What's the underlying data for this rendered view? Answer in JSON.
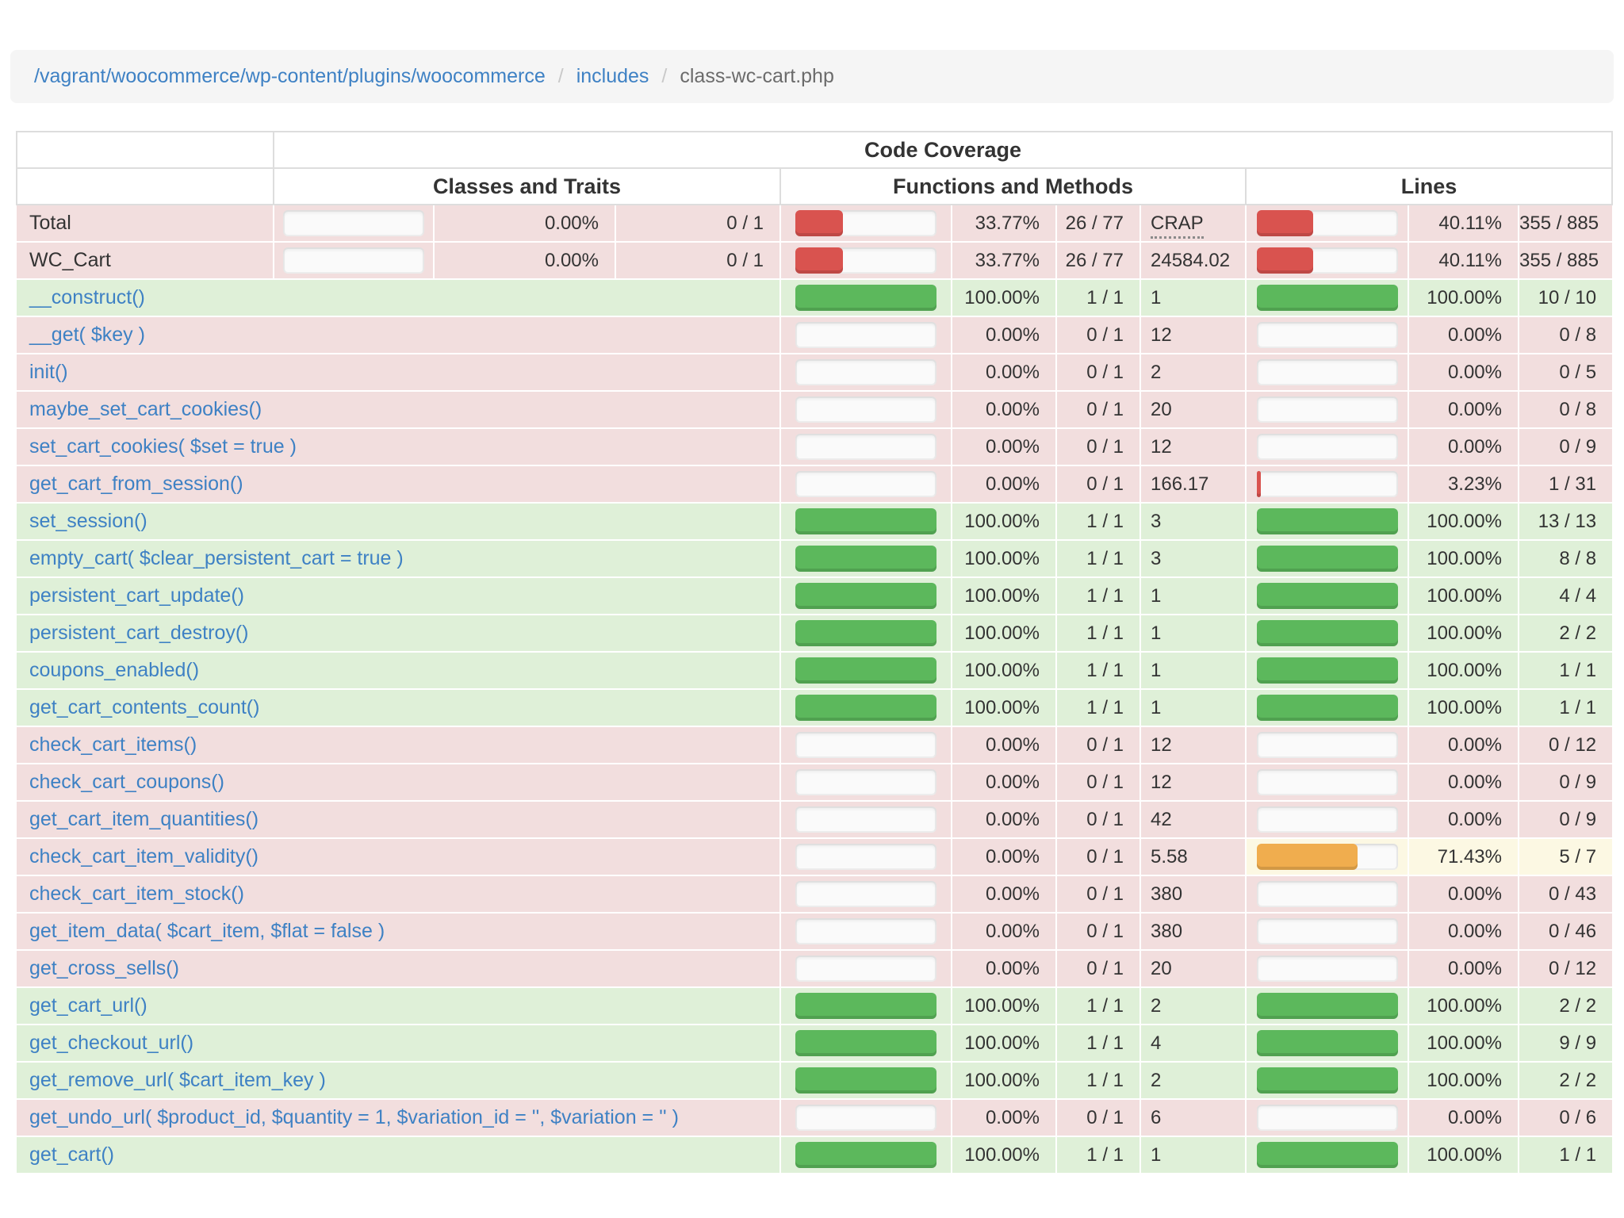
{
  "breadcrumb": {
    "links": [
      "/vagrant/woocommerce/wp-content/plugins/woocommerce",
      "includes"
    ],
    "separator": "/",
    "current": "class-wc-cart.php"
  },
  "table": {
    "header": {
      "main": "Code Coverage",
      "groups": [
        "Classes and Traits",
        "Functions and Methods",
        "Lines"
      ]
    },
    "rows": [
      {
        "name": "Total",
        "is_link": false,
        "kind": "summary",
        "status": "danger",
        "cls": {
          "bar": 0,
          "pct": "0.00%",
          "ratio": "0 / 1"
        },
        "fn": {
          "bar": 33.77,
          "pct": "33.77%",
          "ratio": "26 / 77",
          "crap": "CRAP",
          "crap_header": true
        },
        "ln": {
          "bar": 40.11,
          "pct": "40.11%",
          "ratio": "355 / 885"
        }
      },
      {
        "name": "WC_Cart",
        "is_link": false,
        "kind": "summary",
        "status": "danger",
        "cls": {
          "bar": 0,
          "pct": "0.00%",
          "ratio": "0 / 1"
        },
        "fn": {
          "bar": 33.77,
          "pct": "33.77%",
          "ratio": "26 / 77",
          "crap": "24584.02",
          "crap_header": false
        },
        "ln": {
          "bar": 40.11,
          "pct": "40.11%",
          "ratio": "355 / 885"
        }
      },
      {
        "name": "__construct()",
        "is_link": true,
        "kind": "method",
        "status": "success",
        "fn": {
          "bar": 100,
          "pct": "100.00%",
          "ratio": "1 / 1",
          "crap": "1"
        },
        "ln": {
          "bar": 100,
          "pct": "100.00%",
          "ratio": "10 / 10"
        }
      },
      {
        "name": "__get( $key )",
        "is_link": true,
        "kind": "method",
        "status": "danger",
        "fn": {
          "bar": 0,
          "pct": "0.00%",
          "ratio": "0 / 1",
          "crap": "12"
        },
        "ln": {
          "bar": 0,
          "pct": "0.00%",
          "ratio": "0 / 8"
        }
      },
      {
        "name": "init()",
        "is_link": true,
        "kind": "method",
        "status": "danger",
        "fn": {
          "bar": 0,
          "pct": "0.00%",
          "ratio": "0 / 1",
          "crap": "2"
        },
        "ln": {
          "bar": 0,
          "pct": "0.00%",
          "ratio": "0 / 5"
        }
      },
      {
        "name": "maybe_set_cart_cookies()",
        "is_link": true,
        "kind": "method",
        "status": "danger",
        "fn": {
          "bar": 0,
          "pct": "0.00%",
          "ratio": "0 / 1",
          "crap": "20"
        },
        "ln": {
          "bar": 0,
          "pct": "0.00%",
          "ratio": "0 / 8"
        }
      },
      {
        "name": "set_cart_cookies( $set = true )",
        "is_link": true,
        "kind": "method",
        "status": "danger",
        "fn": {
          "bar": 0,
          "pct": "0.00%",
          "ratio": "0 / 1",
          "crap": "12"
        },
        "ln": {
          "bar": 0,
          "pct": "0.00%",
          "ratio": "0 / 9"
        }
      },
      {
        "name": "get_cart_from_session()",
        "is_link": true,
        "kind": "method",
        "status": "danger",
        "fn": {
          "bar": 0,
          "pct": "0.00%",
          "ratio": "0 / 1",
          "crap": "166.17"
        },
        "ln": {
          "bar": 3.23,
          "pct": "3.23%",
          "ratio": "1 / 31"
        }
      },
      {
        "name": "set_session()",
        "is_link": true,
        "kind": "method",
        "status": "success",
        "fn": {
          "bar": 100,
          "pct": "100.00%",
          "ratio": "1 / 1",
          "crap": "3"
        },
        "ln": {
          "bar": 100,
          "pct": "100.00%",
          "ratio": "13 / 13"
        }
      },
      {
        "name": "empty_cart( $clear_persistent_cart = true )",
        "is_link": true,
        "kind": "method",
        "status": "success",
        "fn": {
          "bar": 100,
          "pct": "100.00%",
          "ratio": "1 / 1",
          "crap": "3"
        },
        "ln": {
          "bar": 100,
          "pct": "100.00%",
          "ratio": "8 / 8"
        }
      },
      {
        "name": "persistent_cart_update()",
        "is_link": true,
        "kind": "method",
        "status": "success",
        "fn": {
          "bar": 100,
          "pct": "100.00%",
          "ratio": "1 / 1",
          "crap": "1"
        },
        "ln": {
          "bar": 100,
          "pct": "100.00%",
          "ratio": "4 / 4"
        }
      },
      {
        "name": "persistent_cart_destroy()",
        "is_link": true,
        "kind": "method",
        "status": "success",
        "fn": {
          "bar": 100,
          "pct": "100.00%",
          "ratio": "1 / 1",
          "crap": "1"
        },
        "ln": {
          "bar": 100,
          "pct": "100.00%",
          "ratio": "2 / 2"
        }
      },
      {
        "name": "coupons_enabled()",
        "is_link": true,
        "kind": "method",
        "status": "success",
        "fn": {
          "bar": 100,
          "pct": "100.00%",
          "ratio": "1 / 1",
          "crap": "1"
        },
        "ln": {
          "bar": 100,
          "pct": "100.00%",
          "ratio": "1 / 1"
        }
      },
      {
        "name": "get_cart_contents_count()",
        "is_link": true,
        "kind": "method",
        "status": "success",
        "fn": {
          "bar": 100,
          "pct": "100.00%",
          "ratio": "1 / 1",
          "crap": "1"
        },
        "ln": {
          "bar": 100,
          "pct": "100.00%",
          "ratio": "1 / 1"
        }
      },
      {
        "name": "check_cart_items()",
        "is_link": true,
        "kind": "method",
        "status": "danger",
        "fn": {
          "bar": 0,
          "pct": "0.00%",
          "ratio": "0 / 1",
          "crap": "12"
        },
        "ln": {
          "bar": 0,
          "pct": "0.00%",
          "ratio": "0 / 12"
        }
      },
      {
        "name": "check_cart_coupons()",
        "is_link": true,
        "kind": "method",
        "status": "danger",
        "fn": {
          "bar": 0,
          "pct": "0.00%",
          "ratio": "0 / 1",
          "crap": "12"
        },
        "ln": {
          "bar": 0,
          "pct": "0.00%",
          "ratio": "0 / 9"
        }
      },
      {
        "name": "get_cart_item_quantities()",
        "is_link": true,
        "kind": "method",
        "status": "danger",
        "fn": {
          "bar": 0,
          "pct": "0.00%",
          "ratio": "0 / 1",
          "crap": "42"
        },
        "ln": {
          "bar": 0,
          "pct": "0.00%",
          "ratio": "0 / 9"
        }
      },
      {
        "name": "check_cart_item_validity()",
        "is_link": true,
        "kind": "method",
        "status": "danger",
        "fn": {
          "bar": 0,
          "pct": "0.00%",
          "ratio": "0 / 1",
          "crap": "5.58"
        },
        "ln": {
          "bar": 71.43,
          "pct": "71.43%",
          "ratio": "5 / 7",
          "status": "warning"
        }
      },
      {
        "name": "check_cart_item_stock()",
        "is_link": true,
        "kind": "method",
        "status": "danger",
        "fn": {
          "bar": 0,
          "pct": "0.00%",
          "ratio": "0 / 1",
          "crap": "380"
        },
        "ln": {
          "bar": 0,
          "pct": "0.00%",
          "ratio": "0 / 43"
        }
      },
      {
        "name": "get_item_data( $cart_item, $flat = false )",
        "is_link": true,
        "kind": "method",
        "status": "danger",
        "fn": {
          "bar": 0,
          "pct": "0.00%",
          "ratio": "0 / 1",
          "crap": "380"
        },
        "ln": {
          "bar": 0,
          "pct": "0.00%",
          "ratio": "0 / 46"
        }
      },
      {
        "name": "get_cross_sells()",
        "is_link": true,
        "kind": "method",
        "status": "danger",
        "fn": {
          "bar": 0,
          "pct": "0.00%",
          "ratio": "0 / 1",
          "crap": "20"
        },
        "ln": {
          "bar": 0,
          "pct": "0.00%",
          "ratio": "0 / 12"
        }
      },
      {
        "name": "get_cart_url()",
        "is_link": true,
        "kind": "method",
        "status": "success",
        "fn": {
          "bar": 100,
          "pct": "100.00%",
          "ratio": "1 / 1",
          "crap": "2"
        },
        "ln": {
          "bar": 100,
          "pct": "100.00%",
          "ratio": "2 / 2"
        }
      },
      {
        "name": "get_checkout_url()",
        "is_link": true,
        "kind": "method",
        "status": "success",
        "fn": {
          "bar": 100,
          "pct": "100.00%",
          "ratio": "1 / 1",
          "crap": "4"
        },
        "ln": {
          "bar": 100,
          "pct": "100.00%",
          "ratio": "9 / 9"
        }
      },
      {
        "name": "get_remove_url( $cart_item_key )",
        "is_link": true,
        "kind": "method",
        "status": "success",
        "fn": {
          "bar": 100,
          "pct": "100.00%",
          "ratio": "1 / 1",
          "crap": "2"
        },
        "ln": {
          "bar": 100,
          "pct": "100.00%",
          "ratio": "2 / 2"
        }
      },
      {
        "name": "get_undo_url( $product_id, $quantity = 1, $variation_id = '', $variation = '' )",
        "is_link": true,
        "kind": "method",
        "status": "danger",
        "fn": {
          "bar": 0,
          "pct": "0.00%",
          "ratio": "0 / 1",
          "crap": "6"
        },
        "ln": {
          "bar": 0,
          "pct": "0.00%",
          "ratio": "0 / 6"
        }
      },
      {
        "name": "get_cart()",
        "is_link": true,
        "kind": "method",
        "status": "success",
        "fn": {
          "bar": 100,
          "pct": "100.00%",
          "ratio": "1 / 1",
          "crap": "1"
        },
        "ln": {
          "bar": 100,
          "pct": "100.00%",
          "ratio": "1 / 1"
        }
      }
    ]
  },
  "colors": {
    "link": "#3e81c4",
    "danger_bg": "#f2dede",
    "success_bg": "#dff0d8",
    "warning_bg": "#fcf8e3",
    "danger_bar": "#d9534f",
    "success_bar": "#5cb85c",
    "warning_bar": "#f0ad4e"
  }
}
